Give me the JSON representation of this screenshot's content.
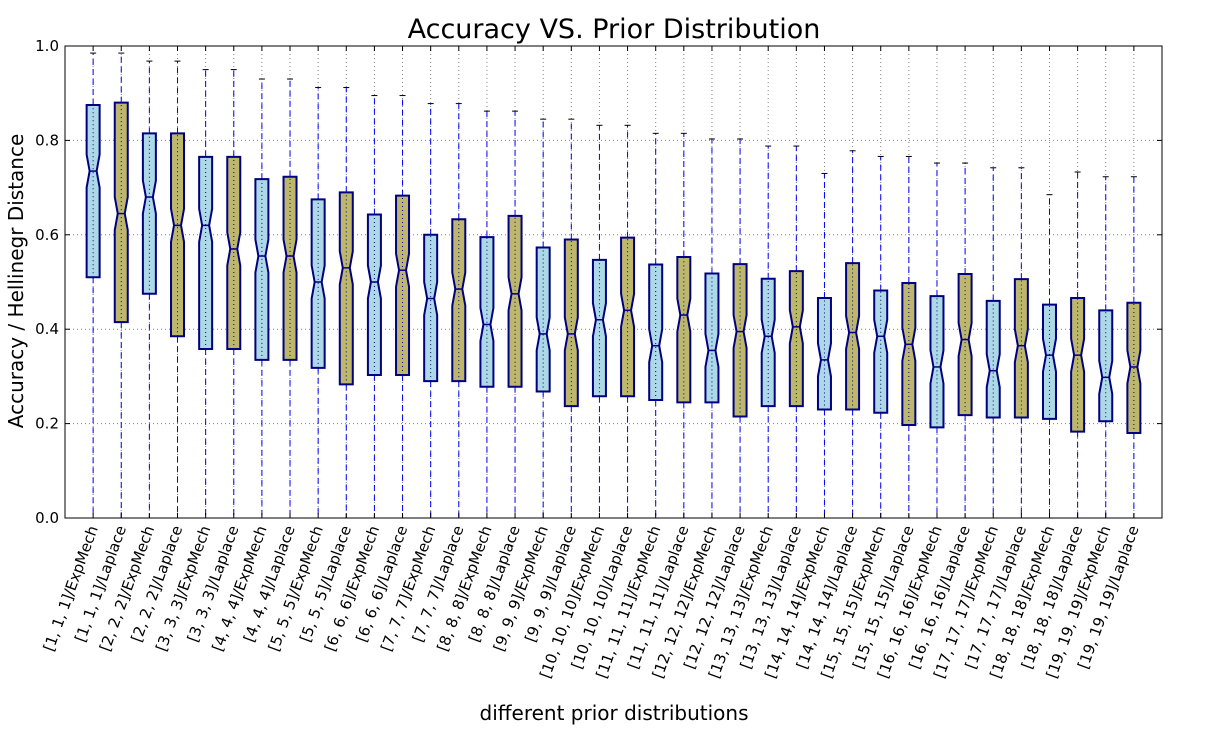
{
  "colors": {
    "expmech_fill": "#add8e6",
    "laplace_fill": "#bdb76b",
    "box_edge": "#000080",
    "whisker": "#0000ff",
    "median": "#000080",
    "grid": "#808080"
  },
  "chart_data": {
    "type": "box",
    "title": "Accuracy VS. Prior Distribution",
    "xlabel": "different prior distributions",
    "ylabel": "Accuracy / Hellinegr Distance",
    "ylim": [
      0.0,
      1.0
    ],
    "yticks": [
      "0.0",
      "0.2",
      "0.4",
      "0.6",
      "0.8",
      "1.0"
    ],
    "grid": true,
    "notched": true,
    "boxes": [
      {
        "label": "[1, 1, 1]/ExpMech",
        "series": "ExpMech",
        "min": 0.0,
        "q1": 0.51,
        "median": 0.735,
        "q3": 0.875,
        "max": 0.985
      },
      {
        "label": "[1, 1, 1]/Laplace",
        "series": "Laplace",
        "min": 0.0,
        "q1": 0.415,
        "median": 0.645,
        "q3": 0.88,
        "max": 0.985
      },
      {
        "label": "[2, 2, 2]/ExpMech",
        "series": "ExpMech",
        "min": 0.0,
        "q1": 0.475,
        "median": 0.68,
        "q3": 0.815,
        "max": 0.968
      },
      {
        "label": "[2, 2, 2]/Laplace",
        "series": "Laplace",
        "min": 0.0,
        "q1": 0.385,
        "median": 0.62,
        "q3": 0.815,
        "max": 0.968
      },
      {
        "label": "[3, 3, 3]/ExpMech",
        "series": "ExpMech",
        "min": 0.0,
        "q1": 0.358,
        "median": 0.62,
        "q3": 0.765,
        "max": 0.95
      },
      {
        "label": "[3, 3, 3]/Laplace",
        "series": "Laplace",
        "min": 0.0,
        "q1": 0.358,
        "median": 0.57,
        "q3": 0.765,
        "max": 0.95
      },
      {
        "label": "[4, 4, 4]/ExpMech",
        "series": "ExpMech",
        "min": 0.0,
        "q1": 0.335,
        "median": 0.555,
        "q3": 0.718,
        "max": 0.93
      },
      {
        "label": "[4, 4, 4]/Laplace",
        "series": "Laplace",
        "min": 0.0,
        "q1": 0.335,
        "median": 0.555,
        "q3": 0.723,
        "max": 0.93
      },
      {
        "label": "[5, 5, 5]/ExpMech",
        "series": "ExpMech",
        "min": 0.0,
        "q1": 0.318,
        "median": 0.5,
        "q3": 0.675,
        "max": 0.912
      },
      {
        "label": "[5, 5, 5]/Laplace",
        "series": "Laplace",
        "min": 0.0,
        "q1": 0.283,
        "median": 0.53,
        "q3": 0.69,
        "max": 0.912
      },
      {
        "label": "[6, 6, 6]/ExpMech",
        "series": "ExpMech",
        "min": 0.0,
        "q1": 0.303,
        "median": 0.5,
        "q3": 0.643,
        "max": 0.895
      },
      {
        "label": "[6, 6, 6]/Laplace",
        "series": "Laplace",
        "min": 0.0,
        "q1": 0.303,
        "median": 0.525,
        "q3": 0.683,
        "max": 0.895
      },
      {
        "label": "[7, 7, 7]/ExpMech",
        "series": "ExpMech",
        "min": 0.0,
        "q1": 0.29,
        "median": 0.465,
        "q3": 0.6,
        "max": 0.878
      },
      {
        "label": "[7, 7, 7]/Laplace",
        "series": "Laplace",
        "min": 0.0,
        "q1": 0.29,
        "median": 0.485,
        "q3": 0.633,
        "max": 0.878
      },
      {
        "label": "[8, 8, 8]/ExpMech",
        "series": "ExpMech",
        "min": 0.0,
        "q1": 0.278,
        "median": 0.41,
        "q3": 0.595,
        "max": 0.862
      },
      {
        "label": "[8, 8, 8]/Laplace",
        "series": "Laplace",
        "min": 0.0,
        "q1": 0.278,
        "median": 0.475,
        "q3": 0.64,
        "max": 0.862
      },
      {
        "label": "[9, 9, 9]/ExpMech",
        "series": "ExpMech",
        "min": 0.0,
        "q1": 0.268,
        "median": 0.39,
        "q3": 0.573,
        "max": 0.845
      },
      {
        "label": "[9, 9, 9]/Laplace",
        "series": "Laplace",
        "min": 0.0,
        "q1": 0.237,
        "median": 0.39,
        "q3": 0.59,
        "max": 0.845
      },
      {
        "label": "[10, 10, 10]/ExpMech",
        "series": "ExpMech",
        "min": 0.0,
        "q1": 0.258,
        "median": 0.42,
        "q3": 0.547,
        "max": 0.832
      },
      {
        "label": "[10, 10, 10]/Laplace",
        "series": "Laplace",
        "min": 0.0,
        "q1": 0.258,
        "median": 0.44,
        "q3": 0.594,
        "max": 0.832
      },
      {
        "label": "[11, 11, 11]/ExpMech",
        "series": "ExpMech",
        "min": 0.0,
        "q1": 0.25,
        "median": 0.365,
        "q3": 0.537,
        "max": 0.815
      },
      {
        "label": "[11, 11, 11]/Laplace",
        "series": "Laplace",
        "min": 0.0,
        "q1": 0.245,
        "median": 0.43,
        "q3": 0.553,
        "max": 0.815
      },
      {
        "label": "[12, 12, 12]/ExpMech",
        "series": "ExpMech",
        "min": 0.0,
        "q1": 0.245,
        "median": 0.355,
        "q3": 0.518,
        "max": 0.803
      },
      {
        "label": "[12, 12, 12]/Laplace",
        "series": "Laplace",
        "min": 0.0,
        "q1": 0.215,
        "median": 0.395,
        "q3": 0.538,
        "max": 0.803
      },
      {
        "label": "[13, 13, 13]/ExpMech",
        "series": "ExpMech",
        "min": 0.0,
        "q1": 0.237,
        "median": 0.385,
        "q3": 0.507,
        "max": 0.788
      },
      {
        "label": "[13, 13, 13]/Laplace",
        "series": "Laplace",
        "min": 0.0,
        "q1": 0.237,
        "median": 0.405,
        "q3": 0.523,
        "max": 0.788
      },
      {
        "label": "[14, 14, 14]/ExpMech",
        "series": "ExpMech",
        "min": 0.0,
        "q1": 0.23,
        "median": 0.335,
        "q3": 0.466,
        "max": 0.73
      },
      {
        "label": "[14, 14, 14]/Laplace",
        "series": "Laplace",
        "min": 0.0,
        "q1": 0.23,
        "median": 0.393,
        "q3": 0.54,
        "max": 0.778
      },
      {
        "label": "[15, 15, 15]/ExpMech",
        "series": "ExpMech",
        "min": 0.0,
        "q1": 0.223,
        "median": 0.385,
        "q3": 0.482,
        "max": 0.766
      },
      {
        "label": "[15, 15, 15]/Laplace",
        "series": "Laplace",
        "min": 0.0,
        "q1": 0.197,
        "median": 0.368,
        "q3": 0.498,
        "max": 0.766
      },
      {
        "label": "[16, 16, 16]/ExpMech",
        "series": "ExpMech",
        "min": 0.0,
        "q1": 0.192,
        "median": 0.32,
        "q3": 0.47,
        "max": 0.752
      },
      {
        "label": "[16, 16, 16]/Laplace",
        "series": "Laplace",
        "min": 0.0,
        "q1": 0.218,
        "median": 0.378,
        "q3": 0.517,
        "max": 0.752
      },
      {
        "label": "[17, 17, 17]/ExpMech",
        "series": "ExpMech",
        "min": 0.0,
        "q1": 0.213,
        "median": 0.312,
        "q3": 0.46,
        "max": 0.742
      },
      {
        "label": "[17, 17, 17]/Laplace",
        "series": "Laplace",
        "min": 0.0,
        "q1": 0.213,
        "median": 0.365,
        "q3": 0.506,
        "max": 0.742
      },
      {
        "label": "[18, 18, 18]/ExpMech",
        "series": "ExpMech",
        "min": 0.0,
        "q1": 0.21,
        "median": 0.345,
        "q3": 0.452,
        "max": 0.685
      },
      {
        "label": "[18, 18, 18]/Laplace",
        "series": "Laplace",
        "min": 0.0,
        "q1": 0.183,
        "median": 0.345,
        "q3": 0.466,
        "max": 0.733
      },
      {
        "label": "[19, 19, 19]/ExpMech",
        "series": "ExpMech",
        "min": 0.0,
        "q1": 0.205,
        "median": 0.298,
        "q3": 0.44,
        "max": 0.723
      },
      {
        "label": "[19, 19, 19]/Laplace",
        "series": "Laplace",
        "min": 0.0,
        "q1": 0.18,
        "median": 0.32,
        "q3": 0.456,
        "max": 0.723
      }
    ]
  }
}
